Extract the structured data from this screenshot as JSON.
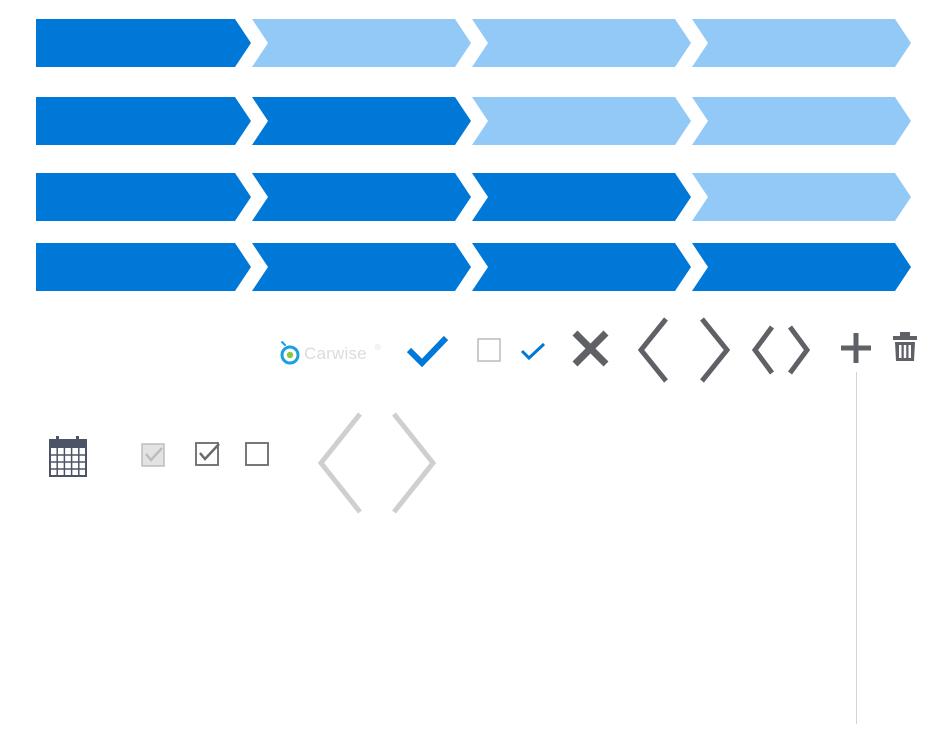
{
  "progress_steppers": {
    "step_count": 4,
    "rows": [
      {
        "completed_steps": 1
      },
      {
        "completed_steps": 2
      },
      {
        "completed_steps": 3
      },
      {
        "completed_steps": 4
      }
    ],
    "colors": {
      "active": "#0078d7",
      "inactive": "#93c9f7"
    }
  },
  "logo": {
    "text": "Carwise",
    "mark": "®",
    "color": "#dcdcdc",
    "accent_ring": "#1a9fe0",
    "accent_dot": "#8cc63f"
  },
  "icons": {
    "top_row": [
      "large-check-icon",
      "checkbox-unchecked-icon",
      "small-check-icon",
      "close-x-icon",
      "chevron-left-icon",
      "chevron-right-icon",
      "code-brackets-icon",
      "plus-icon",
      "trash-icon"
    ],
    "bottom_row": [
      "calendar-icon",
      "checkbox-checked-disabled-icon",
      "checkbox-checked-icon",
      "checkbox-unchecked-icon",
      "light-chevron-left-icon",
      "light-chevron-right-icon"
    ]
  },
  "colors": {
    "primary": "#0078d7",
    "icon_dark": "#5f6166",
    "icon_light": "#cfcfcf",
    "calendar": "#4e5468"
  }
}
